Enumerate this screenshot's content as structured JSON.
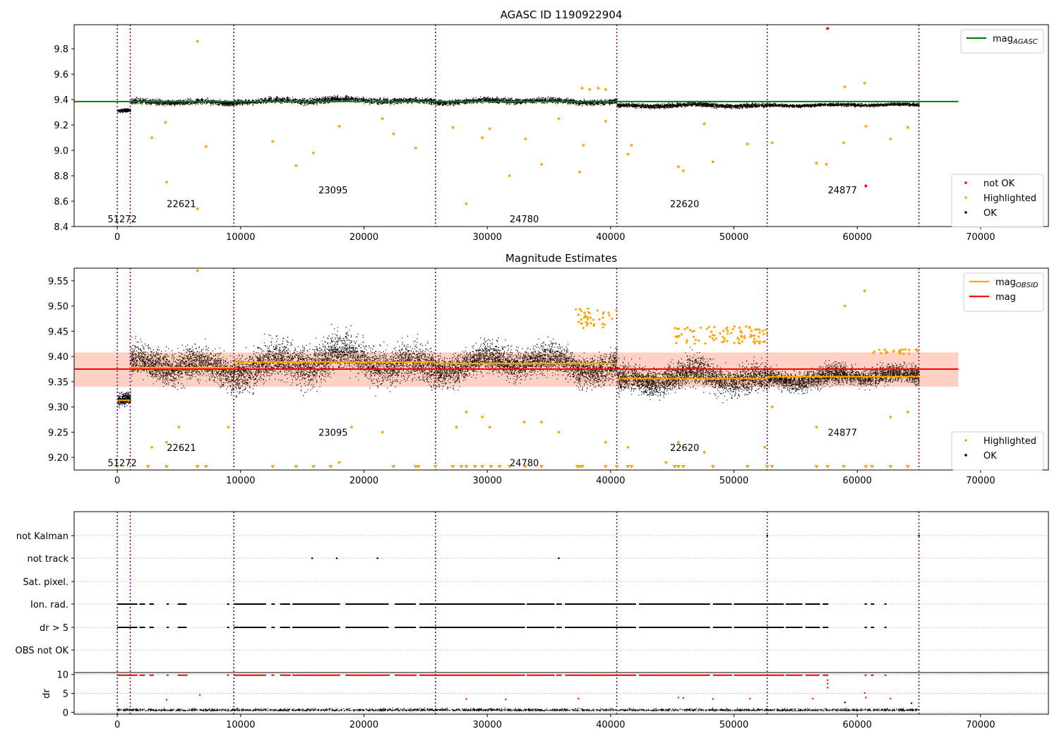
{
  "chart_data": [
    {
      "type": "scatter",
      "title": "AGASC ID 1190922904",
      "xlim": [
        -3500,
        75500
      ],
      "ylim": [
        8.4,
        9.99
      ],
      "x_ticks": [
        0,
        10000,
        20000,
        30000,
        40000,
        50000,
        60000,
        70000
      ],
      "y_ticks": [
        8.4,
        8.6,
        8.8,
        9.0,
        9.2,
        9.4,
        9.6,
        9.8
      ],
      "obsid_boundaries": [
        0,
        1050,
        9450,
        25800,
        40500,
        52700,
        65000
      ],
      "obsid_labels": [
        {
          "text": "51272",
          "x": 400,
          "y": 8.46
        },
        {
          "text": "22621",
          "x": 5200,
          "y": 8.58
        },
        {
          "text": "23095",
          "x": 17500,
          "y": 8.69
        },
        {
          "text": "24780",
          "x": 33000,
          "y": 8.46
        },
        {
          "text": "22620",
          "x": 46000,
          "y": 8.58
        },
        {
          "text": "24877",
          "x": 58800,
          "y": 8.69
        }
      ],
      "mag_agasc": 9.385,
      "segments": [
        {
          "x0": 0,
          "x1": 1050,
          "center": 9.315,
          "spread": 0.035
        },
        {
          "x0": 1050,
          "x1": 9450,
          "center": 9.38,
          "spread": 0.06
        },
        {
          "x0": 9450,
          "x1": 25800,
          "center": 9.395,
          "spread": 0.065
        },
        {
          "x0": 25800,
          "x1": 40500,
          "center": 9.39,
          "spread": 0.06
        },
        {
          "x0": 40500,
          "x1": 52700,
          "center": 9.355,
          "spread": 0.05
        },
        {
          "x0": 52700,
          "x1": 65000,
          "center": 9.36,
          "spread": 0.035
        }
      ],
      "highlighted": [
        [
          6500,
          9.86
        ],
        [
          6500,
          8.54
        ],
        [
          4000,
          8.75
        ],
        [
          2800,
          9.1
        ],
        [
          3900,
          9.22
        ],
        [
          7200,
          9.03
        ],
        [
          12600,
          9.07
        ],
        [
          14500,
          8.88
        ],
        [
          15900,
          8.98
        ],
        [
          18000,
          9.19
        ],
        [
          22400,
          9.13
        ],
        [
          24200,
          9.02
        ],
        [
          27200,
          9.18
        ],
        [
          28300,
          8.58
        ],
        [
          29600,
          9.1
        ],
        [
          31800,
          8.8
        ],
        [
          33100,
          9.09
        ],
        [
          34400,
          8.89
        ],
        [
          37500,
          8.83
        ],
        [
          37800,
          9.04
        ],
        [
          39600,
          9.23
        ],
        [
          41400,
          8.97
        ],
        [
          41700,
          9.04
        ],
        [
          45500,
          8.87
        ],
        [
          45900,
          8.84
        ],
        [
          48300,
          8.91
        ],
        [
          51100,
          9.05
        ],
        [
          53100,
          9.06
        ],
        [
          56700,
          8.9
        ],
        [
          57500,
          8.89
        ],
        [
          58900,
          9.06
        ],
        [
          60700,
          9.19
        ],
        [
          62700,
          9.09
        ],
        [
          64100,
          9.18
        ],
        [
          59000,
          9.5
        ],
        [
          60600,
          9.53
        ],
        [
          30200,
          9.17
        ],
        [
          35800,
          9.25
        ],
        [
          21500,
          9.25
        ],
        [
          47600,
          9.21
        ],
        [
          37700,
          9.49
        ],
        [
          38300,
          9.48
        ],
        [
          39000,
          9.49
        ],
        [
          39600,
          9.48
        ]
      ],
      "not_ok": [
        [
          57600,
          9.96
        ],
        [
          60700,
          8.72
        ]
      ],
      "legend_lines": [
        {
          "name": "mag",
          "sub": "AGASC",
          "color": "#008000"
        }
      ],
      "legend_points": [
        {
          "name": "not OK",
          "color": "#ff0000"
        },
        {
          "name": "Highlighted",
          "color": "#ffa500"
        },
        {
          "name": "OK",
          "color": "#000000"
        }
      ]
    },
    {
      "type": "scatter",
      "title": "Magnitude Estimates",
      "xlim": [
        -3500,
        75500
      ],
      "ylim": [
        9.175,
        9.575
      ],
      "x_ticks": [
        0,
        10000,
        20000,
        30000,
        40000,
        50000,
        60000,
        70000
      ],
      "y_ticks": [
        9.2,
        9.25,
        9.3,
        9.35,
        9.4,
        9.45,
        9.5,
        9.55
      ],
      "obsid_boundaries": [
        0,
        1050,
        9450,
        25800,
        40500,
        52700,
        65000
      ],
      "obsid_labels": [
        {
          "text": "51272",
          "x": 400,
          "y": 9.19
        },
        {
          "text": "22621",
          "x": 5200,
          "y": 9.22
        },
        {
          "text": "23095",
          "x": 17500,
          "y": 9.25
        },
        {
          "text": "24780",
          "x": 33000,
          "y": 9.19
        },
        {
          "text": "22620",
          "x": 46000,
          "y": 9.22
        },
        {
          "text": "24877",
          "x": 58800,
          "y": 9.25
        }
      ],
      "mag": 9.375,
      "mag_band": [
        9.34,
        9.408
      ],
      "mag_obsid": [
        {
          "x0": 0,
          "x1": 1050,
          "y": 9.313
        },
        {
          "x0": 1050,
          "x1": 9450,
          "y": 9.378
        },
        {
          "x0": 9450,
          "x1": 25800,
          "y": 9.389
        },
        {
          "x0": 25800,
          "x1": 40500,
          "y": 9.386
        },
        {
          "x0": 40500,
          "x1": 52700,
          "y": 9.356
        },
        {
          "x0": 52700,
          "x1": 65000,
          "y": 9.36
        }
      ],
      "segments": [
        {
          "x0": 0,
          "x1": 1050,
          "center": 9.313,
          "spread": 0.035
        },
        {
          "x0": 1050,
          "x1": 9450,
          "center": 9.378,
          "spread": 0.085
        },
        {
          "x0": 9450,
          "x1": 25800,
          "center": 9.389,
          "spread": 0.1
        },
        {
          "x0": 25800,
          "x1": 40500,
          "center": 9.386,
          "spread": 0.08
        },
        {
          "x0": 40500,
          "x1": 52700,
          "center": 9.356,
          "spread": 0.075
        },
        {
          "x0": 52700,
          "x1": 65000,
          "center": 9.36,
          "spread": 0.05
        }
      ],
      "highlighted": [
        [
          6500,
          9.57
        ],
        [
          4000,
          9.23
        ],
        [
          5000,
          9.26
        ],
        [
          2800,
          9.22
        ],
        [
          9000,
          9.26
        ],
        [
          18000,
          9.19
        ],
        [
          19000,
          9.26
        ],
        [
          21500,
          9.25
        ],
        [
          28300,
          9.29
        ],
        [
          29600,
          9.28
        ],
        [
          30200,
          9.26
        ],
        [
          35800,
          9.25
        ],
        [
          39600,
          9.23
        ],
        [
          41400,
          9.22
        ],
        [
          45500,
          9.23
        ],
        [
          47600,
          9.21
        ],
        [
          53100,
          9.3
        ],
        [
          56700,
          9.26
        ],
        [
          59000,
          9.5
        ],
        [
          60600,
          9.53
        ],
        [
          62700,
          9.28
        ],
        [
          64100,
          9.29
        ],
        [
          52500,
          9.22
        ],
        [
          27500,
          9.26
        ],
        [
          33000,
          9.27
        ],
        [
          34400,
          9.27
        ],
        [
          44500,
          9.19
        ]
      ],
      "highlight_bands": [
        {
          "x0": 37000,
          "x1": 40500,
          "lo": 9.455,
          "hi": 9.495,
          "n": 40
        },
        {
          "x0": 45200,
          "x1": 52700,
          "lo": 9.425,
          "hi": 9.46,
          "n": 90
        },
        {
          "x0": 61200,
          "x1": 65000,
          "lo": 9.405,
          "hi": 9.415,
          "n": 25
        }
      ],
      "clipped_low_x": [
        0,
        2500,
        4000,
        6500,
        7200,
        12600,
        14500,
        15900,
        17300,
        22400,
        24200,
        24400,
        25800,
        27200,
        27900,
        28300,
        29000,
        29600,
        30300,
        31000,
        31800,
        33100,
        34400,
        37300,
        37500,
        37700,
        39600,
        40500,
        41400,
        41700,
        45200,
        45500,
        45900,
        48300,
        51100,
        52700,
        53100,
        56700,
        57600,
        58900,
        60700,
        61200,
        62700,
        64100
      ],
      "legend_lines": [
        {
          "name": "mag",
          "sub": "OBSID",
          "color": "#ffa500"
        },
        {
          "name": "mag",
          "sub": "",
          "color": "#ff0000"
        }
      ],
      "legend_points": [
        {
          "name": "Highlighted",
          "color": "#ffa500"
        },
        {
          "name": "OK",
          "color": "#000000"
        }
      ]
    },
    {
      "type": "scatter",
      "title": "",
      "xlim": [
        -3500,
        75500
      ],
      "x_ticks": [
        0,
        10000,
        20000,
        30000,
        40000,
        50000,
        60000,
        70000
      ],
      "obsid_boundaries": [
        0,
        1050,
        9450,
        25800,
        40500,
        52700,
        65000
      ],
      "flag_rows": [
        "not Kalman",
        "not track",
        "Sat. pixel.",
        "Ion. rad.",
        "dr > 5",
        "OBS not OK"
      ],
      "flag_points": {
        "not Kalman": [
          52700,
          65000
        ],
        "not track": [
          15800,
          17800,
          21100,
          35800
        ],
        "Sat. pixel.": [],
        "OBS not OK": []
      },
      "flag_runs": [
        {
          "x0": 0,
          "x1": 1600
        },
        {
          "x0": 1800,
          "x1": 2200
        },
        {
          "x0": 2600,
          "x1": 2900
        },
        {
          "x0": 4000,
          "x1": 4100
        },
        {
          "x0": 4900,
          "x1": 5600
        },
        {
          "x0": 8900,
          "x1": 9000
        },
        {
          "x0": 9450,
          "x1": 12000
        },
        {
          "x0": 12500,
          "x1": 12700
        },
        {
          "x0": 13200,
          "x1": 14000
        },
        {
          "x0": 14200,
          "x1": 18000
        },
        {
          "x0": 18500,
          "x1": 22000
        },
        {
          "x0": 22500,
          "x1": 24200
        },
        {
          "x0": 24500,
          "x1": 33000
        },
        {
          "x0": 33200,
          "x1": 35400
        },
        {
          "x0": 35600,
          "x1": 36000
        },
        {
          "x0": 36300,
          "x1": 42000
        },
        {
          "x0": 42300,
          "x1": 48000
        },
        {
          "x0": 48300,
          "x1": 49800
        },
        {
          "x0": 50000,
          "x1": 54000
        },
        {
          "x0": 54200,
          "x1": 55500
        },
        {
          "x0": 55800,
          "x1": 56900
        },
        {
          "x0": 57200,
          "x1": 57600
        },
        {
          "x0": 60600,
          "x1": 60700
        },
        {
          "x0": 61100,
          "x1": 61300
        },
        {
          "x0": 62200,
          "x1": 62300
        }
      ],
      "dr_ylim": [
        -0.5,
        10.5
      ],
      "dr_ticks": [
        0,
        5,
        10
      ],
      "dr_label": "dr",
      "dr_outliers": [
        [
          57600,
          8.5
        ],
        [
          57600,
          7.6
        ],
        [
          57600,
          6.5
        ],
        [
          60600,
          5.1
        ],
        [
          6700,
          4.6
        ],
        [
          45500,
          3.9
        ],
        [
          45900,
          3.8
        ],
        [
          4000,
          3.3
        ],
        [
          28300,
          3.5
        ],
        [
          31500,
          3.4
        ],
        [
          37400,
          3.6
        ],
        [
          48300,
          3.5
        ],
        [
          51300,
          3.6
        ],
        [
          56400,
          3.6
        ],
        [
          60700,
          3.9
        ],
        [
          62700,
          3.6
        ],
        [
          59000,
          2.6
        ],
        [
          64400,
          2.4
        ]
      ]
    }
  ]
}
